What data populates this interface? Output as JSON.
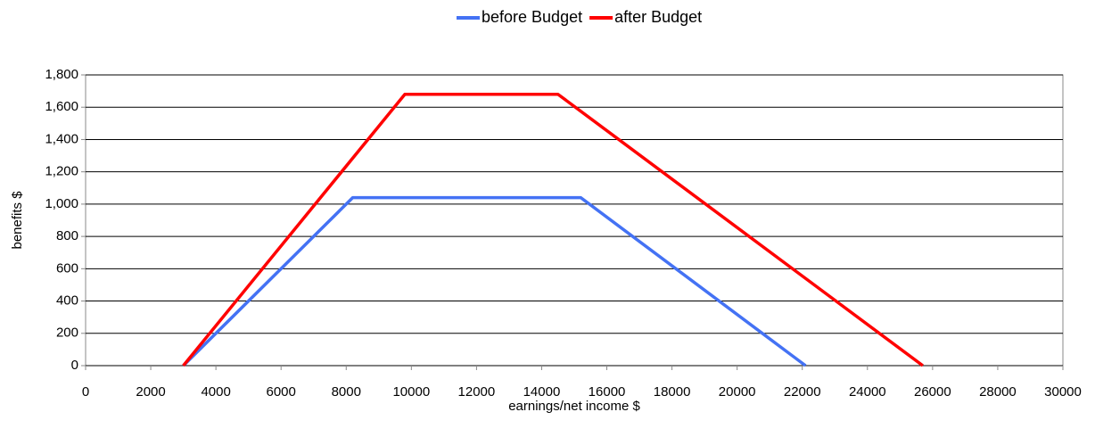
{
  "chart_data": {
    "type": "line",
    "x_label": "earnings/net income $",
    "y_label": "benefits $",
    "series": [
      {
        "name": "before Budget",
        "color": "#4472f4",
        "x": [
          3000,
          8200,
          15200,
          22100
        ],
        "values": [
          0,
          1040,
          1040,
          0
        ]
      },
      {
        "name": "after Budget",
        "color": "#ff0000",
        "x": [
          3000,
          9800,
          14500,
          25700
        ],
        "values": [
          0,
          1680,
          1680,
          0
        ]
      }
    ],
    "xlim": [
      0,
      30000
    ],
    "xticks": [
      0,
      2000,
      4000,
      6000,
      8000,
      10000,
      12000,
      14000,
      16000,
      18000,
      20000,
      22000,
      24000,
      26000,
      28000,
      30000
    ],
    "ylim": [
      0,
      1800
    ],
    "yticks": [
      0,
      200,
      400,
      600,
      800,
      {
        "value": 1000,
        "label": "1,000"
      },
      {
        "value": 1200,
        "label": "1,200"
      },
      {
        "value": 1400,
        "label": "1,400"
      },
      {
        "value": 1600,
        "label": "1,600"
      },
      {
        "value": 1800,
        "label": "1,800"
      }
    ],
    "grid": true,
    "legend": "top"
  }
}
